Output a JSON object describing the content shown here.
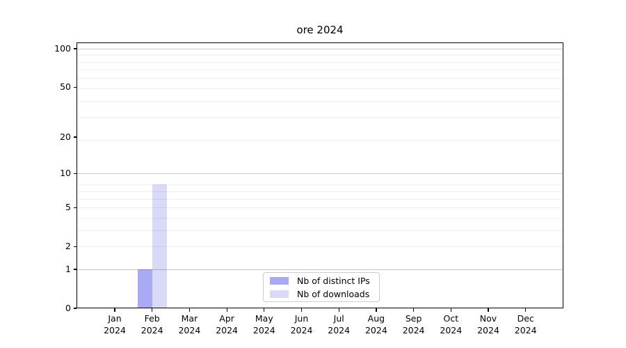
{
  "chart_data": {
    "type": "bar",
    "title": "ore 2024",
    "categories": [
      "Jan 2024",
      "Feb 2024",
      "Mar 2024",
      "Apr 2024",
      "May 2024",
      "Jun 2024",
      "Jul 2024",
      "Aug 2024",
      "Sep 2024",
      "Oct 2024",
      "Nov 2024",
      "Dec 2024"
    ],
    "series": [
      {
        "name": "Nb of distinct IPs",
        "color": "#a9a9f4",
        "values": [
          0,
          1,
          0,
          0,
          0,
          0,
          0,
          0,
          0,
          0,
          0,
          0
        ]
      },
      {
        "name": "Nb of downloads",
        "color": "#d9d9f8",
        "values": [
          0,
          8,
          0,
          0,
          0,
          0,
          0,
          0,
          0,
          0,
          0,
          0
        ]
      }
    ],
    "xlabel": "",
    "ylabel": "",
    "yscale": "log1p",
    "ylim": [
      0,
      112
    ],
    "ytick_values": [
      0,
      1,
      2,
      5,
      10,
      20,
      50,
      100
    ],
    "ytick_labels": [
      "0",
      "1",
      "2",
      "5",
      "10",
      "20",
      "50",
      "100"
    ],
    "grid": {
      "orientation": "horizontal",
      "major_values": [
        1,
        10,
        100
      ],
      "minor_values": [
        2,
        3,
        4,
        5,
        6,
        7,
        8,
        19,
        29,
        39,
        49,
        59,
        69,
        79,
        89
      ],
      "major_color": "rgba(0,0,0,0.22)",
      "minor_color": "rgba(0,0,0,0.065)"
    },
    "legend": {
      "position": "lower-center-inside"
    },
    "colors": {
      "background": "#ffffff",
      "axes": "#000000",
      "text": "#000000"
    }
  }
}
